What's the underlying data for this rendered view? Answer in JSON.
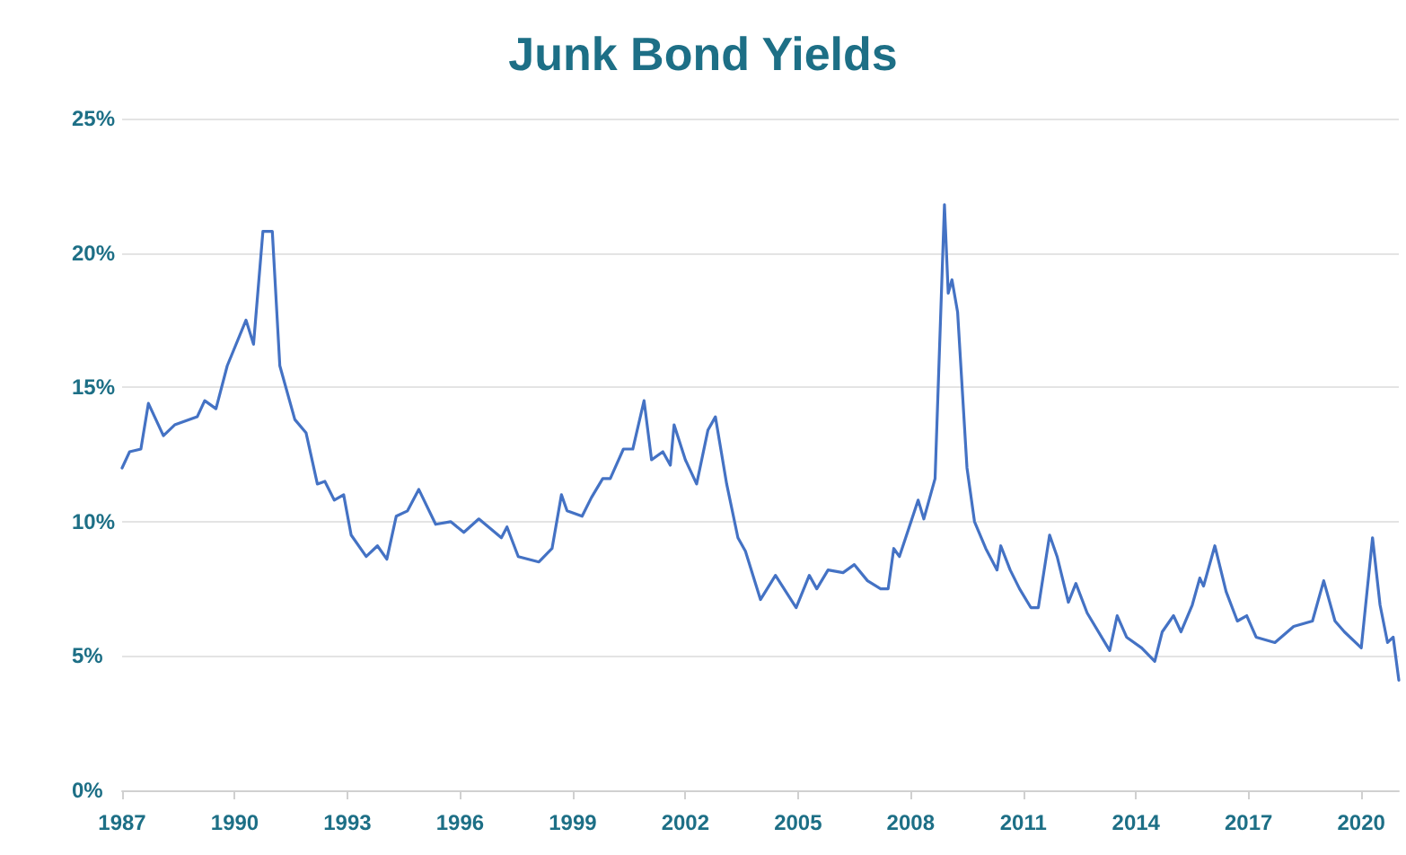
{
  "chart_data": {
    "type": "line",
    "title": "Junk Bond Yields",
    "x": [
      1987.0,
      1987.2,
      1987.5,
      1987.7,
      1988.1,
      1988.4,
      1989.0,
      1989.2,
      1989.5,
      1989.8,
      1990.3,
      1990.5,
      1990.75,
      1991.0,
      1991.2,
      1991.6,
      1991.9,
      1992.2,
      1992.4,
      1992.65,
      1992.9,
      1993.1,
      1993.5,
      1993.8,
      1994.05,
      1994.3,
      1994.6,
      1994.9,
      1995.35,
      1995.75,
      1996.1,
      1996.5,
      1997.1,
      1997.25,
      1997.55,
      1998.1,
      1998.45,
      1998.7,
      1998.85,
      1999.25,
      1999.5,
      1999.8,
      2000.0,
      2000.35,
      2000.6,
      2000.9,
      2001.1,
      2001.4,
      2001.6,
      2001.7,
      2002.0,
      2002.3,
      2002.6,
      2002.8,
      2003.1,
      2003.4,
      2003.6,
      2004.0,
      2004.4,
      2004.95,
      2005.3,
      2005.5,
      2005.8,
      2006.2,
      2006.5,
      2006.85,
      2007.2,
      2007.4,
      2007.55,
      2007.7,
      2008.2,
      2008.35,
      2008.65,
      2008.9,
      2009.0,
      2009.1,
      2009.25,
      2009.5,
      2009.7,
      2010.0,
      2010.3,
      2010.4,
      2010.65,
      2010.9,
      2011.2,
      2011.4,
      2011.7,
      2011.9,
      2012.2,
      2012.4,
      2012.7,
      2013.3,
      2013.5,
      2013.75,
      2014.15,
      2014.5,
      2014.7,
      2015.0,
      2015.2,
      2015.5,
      2015.7,
      2015.8,
      2016.1,
      2016.4,
      2016.7,
      2016.95,
      2017.2,
      2017.7,
      2018.2,
      2018.7,
      2019.0,
      2019.3,
      2019.55,
      2020.0,
      2020.3,
      2020.5,
      2020.7,
      2020.85,
      2021.0
    ],
    "series": [
      {
        "color": "#4472c4",
        "values": [
          12.0,
          12.6,
          12.7,
          14.4,
          13.2,
          13.6,
          13.9,
          14.5,
          14.2,
          15.8,
          17.5,
          16.6,
          20.8,
          20.8,
          15.8,
          13.8,
          13.3,
          11.4,
          11.5,
          10.8,
          11.0,
          9.5,
          8.7,
          9.1,
          8.6,
          10.2,
          10.4,
          11.2,
          9.9,
          10.0,
          9.6,
          10.1,
          9.4,
          9.8,
          8.7,
          8.5,
          9.0,
          11.0,
          10.4,
          10.2,
          10.9,
          11.6,
          11.6,
          12.7,
          12.7,
          14.5,
          12.3,
          12.6,
          12.1,
          13.6,
          12.3,
          11.4,
          13.4,
          13.9,
          11.4,
          9.4,
          8.9,
          7.1,
          8.0,
          6.8,
          8.0,
          7.5,
          8.2,
          8.1,
          8.4,
          7.8,
          7.5,
          7.5,
          9.0,
          8.7,
          10.8,
          10.1,
          11.6,
          21.8,
          18.5,
          19.0,
          17.8,
          12.0,
          10.0,
          9.0,
          8.2,
          9.1,
          8.2,
          7.5,
          6.8,
          6.8,
          9.5,
          8.7,
          7.0,
          7.7,
          6.6,
          5.2,
          6.5,
          5.7,
          5.3,
          4.8,
          5.9,
          6.5,
          5.9,
          6.9,
          7.9,
          7.6,
          9.1,
          7.4,
          6.3,
          6.5,
          5.7,
          5.5,
          6.1,
          6.3,
          7.8,
          6.3,
          5.9,
          5.3,
          9.4,
          6.9,
          5.5,
          5.7,
          4.1
        ]
      }
    ],
    "xlim": [
      1987,
      2021
    ],
    "xticks": [
      1987,
      1990,
      1993,
      1996,
      1999,
      2002,
      2005,
      2008,
      2011,
      2014,
      2017,
      2020
    ],
    "ylim": [
      0,
      25
    ],
    "yticks": [
      {
        "value": 0,
        "label": "0%"
      },
      {
        "value": 5,
        "label": "5%"
      },
      {
        "value": 10,
        "label": "10%"
      },
      {
        "value": 15,
        "label": "15%"
      },
      {
        "value": 20,
        "label": "20%"
      },
      {
        "value": 25,
        "label": "25%"
      }
    ],
    "grid": "y",
    "marker": "none",
    "line_style": "solid"
  }
}
